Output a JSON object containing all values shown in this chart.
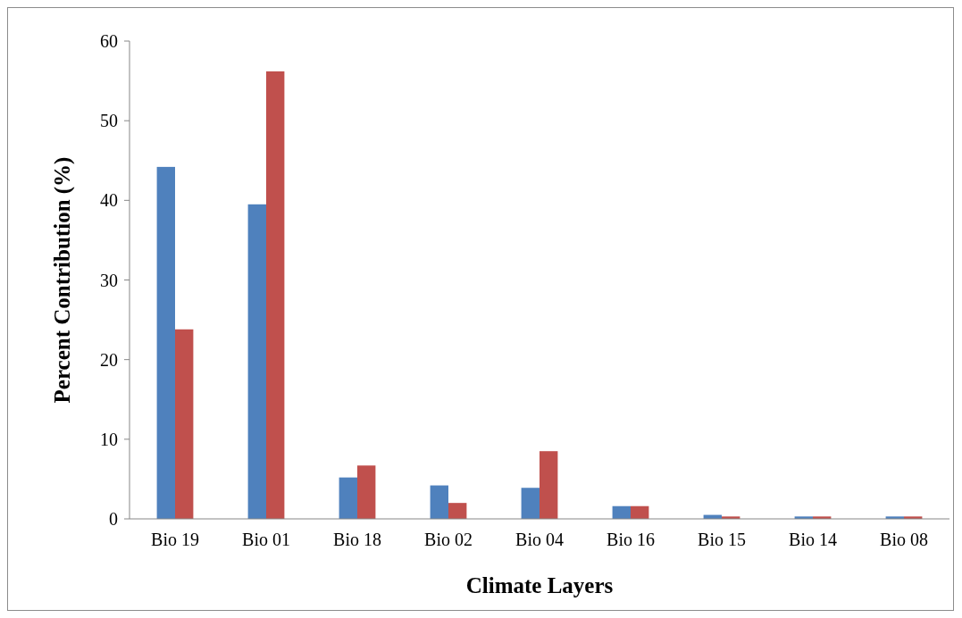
{
  "chart_data": {
    "type": "bar",
    "xlabel": "Climate Layers",
    "ylabel": "Percent Contribution (%)",
    "categories": [
      "Bio 19",
      "Bio 01",
      "Bio 18",
      "Bio 02",
      "Bio 04",
      "Bio 16",
      "Bio 15",
      "Bio 14",
      "Bio 08"
    ],
    "series": [
      {
        "color": "#4f81bd",
        "values": [
          44.2,
          39.5,
          5.2,
          4.2,
          3.9,
          1.6,
          0.5,
          0.3,
          0.3
        ]
      },
      {
        "color": "#c0504d",
        "values": [
          23.8,
          56.2,
          6.7,
          2.0,
          8.5,
          1.6,
          0.3,
          0.3,
          0.3
        ]
      }
    ],
    "ylim": [
      0,
      60
    ],
    "yticks": [
      0,
      10,
      20,
      30,
      40,
      50,
      60
    ],
    "grid": false
  }
}
